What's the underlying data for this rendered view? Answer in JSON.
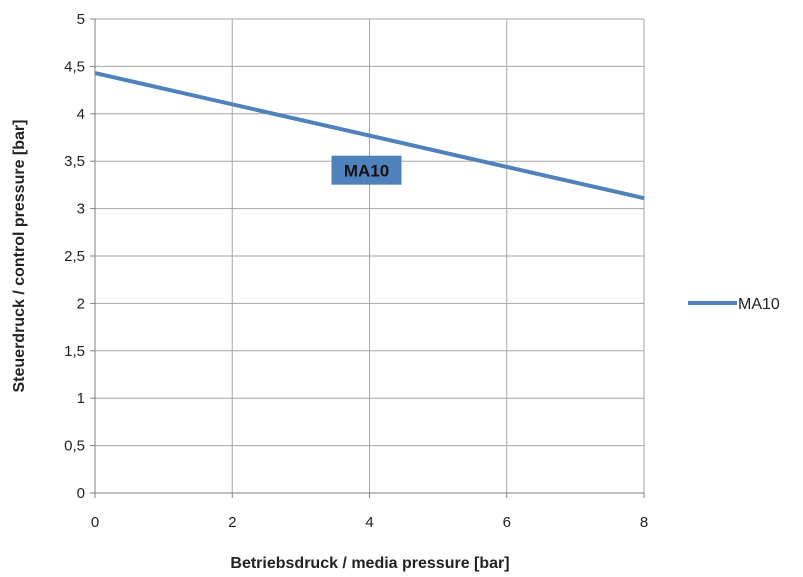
{
  "chart_data": {
    "type": "line",
    "xlabel": "Betriebsdruck / media pressure [bar]",
    "ylabel": "Steuerdruck  / control pressure [bar]",
    "xlim": [
      0,
      8
    ],
    "ylim": [
      0,
      5
    ],
    "x_ticks": [
      0,
      2,
      4,
      6,
      8
    ],
    "x_tick_labels": [
      "0",
      "2",
      "4",
      "6",
      "8"
    ],
    "y_ticks": [
      0,
      0.5,
      1,
      1.5,
      2,
      2.5,
      3,
      3.5,
      4,
      4.5,
      5
    ],
    "y_tick_labels": [
      "0",
      "0,5",
      "1",
      "1,5",
      "2",
      "2,5",
      "3",
      "3,5",
      "4",
      "4,5",
      "5"
    ],
    "grid": true,
    "legend": "right",
    "series": [
      {
        "name": "MA10",
        "color": "#4f81bd",
        "x": [
          0,
          8
        ],
        "y": [
          4.43,
          3.11
        ]
      }
    ],
    "annotations": [
      {
        "text": "MA10",
        "x": 4,
        "y": 3.4,
        "bg": "#4f81bd"
      }
    ]
  }
}
